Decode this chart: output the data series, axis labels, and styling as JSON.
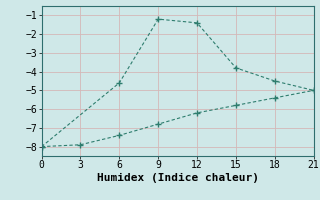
{
  "line1_x": [
    0,
    6,
    9,
    12,
    15,
    18,
    21
  ],
  "line1_y": [
    -8,
    -4.6,
    -1.2,
    -1.4,
    -3.8,
    -4.5,
    -5.0
  ],
  "line2_x": [
    0,
    3,
    6,
    9,
    12,
    15,
    18,
    21
  ],
  "line2_y": [
    -8,
    -7.9,
    -7.4,
    -6.8,
    -6.2,
    -5.8,
    -5.4,
    -5.0
  ],
  "line_color": "#2e7d6e",
  "xlabel": "Humidex (Indice chaleur)",
  "xlim": [
    0,
    21
  ],
  "ylim": [
    -8.5,
    -0.5
  ],
  "xticks": [
    0,
    3,
    6,
    9,
    12,
    15,
    18,
    21
  ],
  "yticks": [
    -8,
    -7,
    -6,
    -5,
    -4,
    -3,
    -2,
    -1
  ],
  "bg_color": "#cfe8e8",
  "grid_color": "#c8d8d8",
  "xlabel_fontsize": 8,
  "tick_fontsize": 7,
  "marker_size": 3
}
